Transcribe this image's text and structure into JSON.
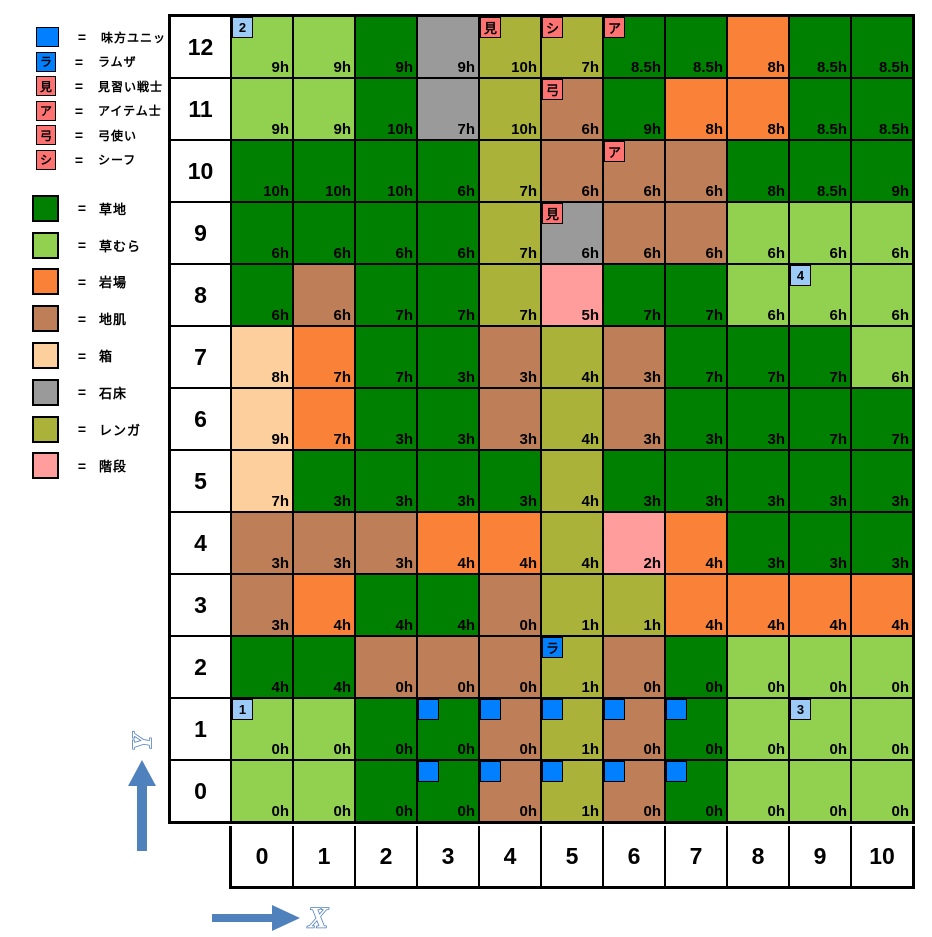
{
  "legend": {
    "eq": "=",
    "units": [
      {
        "marker": "unit",
        "label": "味方ユニット"
      },
      {
        "marker": "ramza",
        "label": "ラムザ"
      },
      {
        "marker": "squire",
        "label": "見習い戦士"
      },
      {
        "marker": "chemist",
        "label": "アイテム士"
      },
      {
        "marker": "archer",
        "label": "弓使い"
      },
      {
        "marker": "thief",
        "label": "シーフ"
      }
    ],
    "terrains": [
      {
        "key": "g",
        "label": "草地"
      },
      {
        "key": "G",
        "label": "草むら"
      },
      {
        "key": "o",
        "label": "岩場"
      },
      {
        "key": "b",
        "label": "地肌"
      },
      {
        "key": "x",
        "label": "箱"
      },
      {
        "key": "s",
        "label": "石床"
      },
      {
        "key": "r",
        "label": "レンガ"
      },
      {
        "key": "p",
        "label": "階段"
      }
    ]
  },
  "palette": {
    "terrain": {
      "g": "#008000",
      "G": "#92D050",
      "o": "#FA8138",
      "b": "#BD7E58",
      "x": "#FCCF9C",
      "s": "#9A9A9A",
      "r": "#AAB23A",
      "p": "#FF9C9C"
    },
    "markers": {
      "unit": {
        "text": "",
        "bg": "#0080FF"
      },
      "ramza": {
        "text": "ラ",
        "bg": "#0080FF"
      },
      "squire": {
        "text": "見",
        "bg": "#FF7272"
      },
      "chemist": {
        "text": "ア",
        "bg": "#FF7272"
      },
      "archer": {
        "text": "弓",
        "bg": "#FF7272"
      },
      "thief": {
        "text": "シ",
        "bg": "#FF7272"
      },
      "n1": {
        "text": "1",
        "bg": "#9CCBF8"
      },
      "n2": {
        "text": "2",
        "bg": "#9CCBF8"
      },
      "n3": {
        "text": "3",
        "bg": "#9CCBF8"
      },
      "n4": {
        "text": "4",
        "bg": "#9CCBF8"
      }
    },
    "arrow": "#4F81BD"
  },
  "map": {
    "col_headers": [
      "0",
      "1",
      "2",
      "3",
      "4",
      "5",
      "6",
      "7",
      "8",
      "9",
      "10"
    ],
    "rows": [
      {
        "label": "12",
        "cells": [
          [
            "G",
            "9h",
            "n2"
          ],
          [
            "G",
            "9h",
            ""
          ],
          [
            "g",
            "9h",
            ""
          ],
          [
            "s",
            "9h",
            ""
          ],
          [
            "r",
            "10h",
            "squire"
          ],
          [
            "r",
            "7h",
            "thief"
          ],
          [
            "g",
            "8.5h",
            "chemist"
          ],
          [
            "g",
            "8.5h",
            ""
          ],
          [
            "o",
            "8h",
            ""
          ],
          [
            "g",
            "8.5h",
            ""
          ],
          [
            "g",
            "8.5h",
            ""
          ]
        ]
      },
      {
        "label": "11",
        "cells": [
          [
            "G",
            "9h",
            ""
          ],
          [
            "G",
            "9h",
            ""
          ],
          [
            "g",
            "10h",
            ""
          ],
          [
            "s",
            "7h",
            ""
          ],
          [
            "r",
            "10h",
            ""
          ],
          [
            "b",
            "6h",
            "archer"
          ],
          [
            "g",
            "9h",
            ""
          ],
          [
            "o",
            "8h",
            ""
          ],
          [
            "o",
            "8h",
            ""
          ],
          [
            "g",
            "8.5h",
            ""
          ],
          [
            "g",
            "8.5h",
            ""
          ]
        ]
      },
      {
        "label": "10",
        "cells": [
          [
            "g",
            "10h",
            ""
          ],
          [
            "g",
            "10h",
            ""
          ],
          [
            "g",
            "10h",
            ""
          ],
          [
            "g",
            "6h",
            ""
          ],
          [
            "r",
            "7h",
            ""
          ],
          [
            "b",
            "6h",
            ""
          ],
          [
            "b",
            "6h",
            "chemist"
          ],
          [
            "b",
            "6h",
            ""
          ],
          [
            "g",
            "8h",
            ""
          ],
          [
            "g",
            "8.5h",
            ""
          ],
          [
            "g",
            "9h",
            ""
          ]
        ]
      },
      {
        "label": "9",
        "cells": [
          [
            "g",
            "6h",
            ""
          ],
          [
            "g",
            "6h",
            ""
          ],
          [
            "g",
            "6h",
            ""
          ],
          [
            "g",
            "6h",
            ""
          ],
          [
            "r",
            "7h",
            ""
          ],
          [
            "s",
            "6h",
            "squire"
          ],
          [
            "b",
            "6h",
            ""
          ],
          [
            "b",
            "6h",
            ""
          ],
          [
            "G",
            "6h",
            ""
          ],
          [
            "G",
            "6h",
            ""
          ],
          [
            "G",
            "6h",
            ""
          ]
        ]
      },
      {
        "label": "8",
        "cells": [
          [
            "g",
            "6h",
            ""
          ],
          [
            "b",
            "6h",
            ""
          ],
          [
            "g",
            "7h",
            ""
          ],
          [
            "g",
            "7h",
            ""
          ],
          [
            "r",
            "7h",
            ""
          ],
          [
            "p",
            "5h",
            ""
          ],
          [
            "g",
            "7h",
            ""
          ],
          [
            "g",
            "7h",
            ""
          ],
          [
            "G",
            "6h",
            ""
          ],
          [
            "G",
            "6h",
            "n4"
          ],
          [
            "G",
            "6h",
            ""
          ]
        ]
      },
      {
        "label": "7",
        "cells": [
          [
            "x",
            "8h",
            ""
          ],
          [
            "o",
            "7h",
            ""
          ],
          [
            "g",
            "7h",
            ""
          ],
          [
            "g",
            "3h",
            ""
          ],
          [
            "b",
            "3h",
            ""
          ],
          [
            "r",
            "4h",
            ""
          ],
          [
            "b",
            "3h",
            ""
          ],
          [
            "g",
            "7h",
            ""
          ],
          [
            "g",
            "7h",
            ""
          ],
          [
            "g",
            "7h",
            ""
          ],
          [
            "G",
            "6h",
            ""
          ]
        ]
      },
      {
        "label": "6",
        "cells": [
          [
            "x",
            "9h",
            ""
          ],
          [
            "o",
            "7h",
            ""
          ],
          [
            "g",
            "3h",
            ""
          ],
          [
            "g",
            "3h",
            ""
          ],
          [
            "b",
            "3h",
            ""
          ],
          [
            "r",
            "4h",
            ""
          ],
          [
            "b",
            "3h",
            ""
          ],
          [
            "g",
            "3h",
            ""
          ],
          [
            "g",
            "3h",
            ""
          ],
          [
            "g",
            "7h",
            ""
          ],
          [
            "g",
            "7h",
            ""
          ]
        ]
      },
      {
        "label": "5",
        "cells": [
          [
            "x",
            "7h",
            ""
          ],
          [
            "g",
            "3h",
            ""
          ],
          [
            "g",
            "3h",
            ""
          ],
          [
            "g",
            "3h",
            ""
          ],
          [
            "g",
            "3h",
            ""
          ],
          [
            "r",
            "4h",
            ""
          ],
          [
            "g",
            "3h",
            ""
          ],
          [
            "g",
            "3h",
            ""
          ],
          [
            "g",
            "3h",
            ""
          ],
          [
            "g",
            "3h",
            ""
          ],
          [
            "g",
            "3h",
            ""
          ]
        ]
      },
      {
        "label": "4",
        "cells": [
          [
            "b",
            "3h",
            ""
          ],
          [
            "b",
            "3h",
            ""
          ],
          [
            "b",
            "3h",
            ""
          ],
          [
            "o",
            "4h",
            ""
          ],
          [
            "o",
            "4h",
            ""
          ],
          [
            "r",
            "4h",
            ""
          ],
          [
            "p",
            "2h",
            ""
          ],
          [
            "o",
            "4h",
            ""
          ],
          [
            "g",
            "3h",
            ""
          ],
          [
            "g",
            "3h",
            ""
          ],
          [
            "g",
            "3h",
            ""
          ]
        ]
      },
      {
        "label": "3",
        "cells": [
          [
            "b",
            "3h",
            ""
          ],
          [
            "o",
            "4h",
            ""
          ],
          [
            "g",
            "4h",
            ""
          ],
          [
            "g",
            "4h",
            ""
          ],
          [
            "b",
            "0h",
            ""
          ],
          [
            "r",
            "1h",
            ""
          ],
          [
            "r",
            "1h",
            ""
          ],
          [
            "o",
            "4h",
            ""
          ],
          [
            "o",
            "4h",
            ""
          ],
          [
            "o",
            "4h",
            ""
          ],
          [
            "o",
            "4h",
            ""
          ]
        ]
      },
      {
        "label": "2",
        "cells": [
          [
            "g",
            "4h",
            ""
          ],
          [
            "g",
            "4h",
            ""
          ],
          [
            "b",
            "0h",
            ""
          ],
          [
            "b",
            "0h",
            ""
          ],
          [
            "b",
            "0h",
            ""
          ],
          [
            "r",
            "1h",
            "ramza"
          ],
          [
            "b",
            "0h",
            ""
          ],
          [
            "g",
            "0h",
            ""
          ],
          [
            "G",
            "0h",
            ""
          ],
          [
            "G",
            "0h",
            ""
          ],
          [
            "G",
            "0h",
            ""
          ]
        ]
      },
      {
        "label": "1",
        "cells": [
          [
            "G",
            "0h",
            "n1"
          ],
          [
            "G",
            "0h",
            ""
          ],
          [
            "g",
            "0h",
            ""
          ],
          [
            "g",
            "0h",
            "unit"
          ],
          [
            "b",
            "0h",
            "unit"
          ],
          [
            "r",
            "1h",
            "unit"
          ],
          [
            "b",
            "0h",
            "unit"
          ],
          [
            "g",
            "0h",
            "unit"
          ],
          [
            "G",
            "0h",
            ""
          ],
          [
            "G",
            "0h",
            "n3"
          ],
          [
            "G",
            "0h",
            ""
          ]
        ]
      },
      {
        "label": "0",
        "cells": [
          [
            "G",
            "0h",
            ""
          ],
          [
            "G",
            "0h",
            ""
          ],
          [
            "g",
            "0h",
            ""
          ],
          [
            "g",
            "0h",
            "unit"
          ],
          [
            "b",
            "0h",
            "unit"
          ],
          [
            "r",
            "1h",
            "unit"
          ],
          [
            "b",
            "0h",
            "unit"
          ],
          [
            "g",
            "0h",
            "unit"
          ],
          [
            "G",
            "0h",
            ""
          ],
          [
            "G",
            "0h",
            ""
          ],
          [
            "G",
            "0h",
            ""
          ]
        ]
      }
    ]
  },
  "axes": {
    "x_label": "X",
    "y_label": "Y"
  }
}
